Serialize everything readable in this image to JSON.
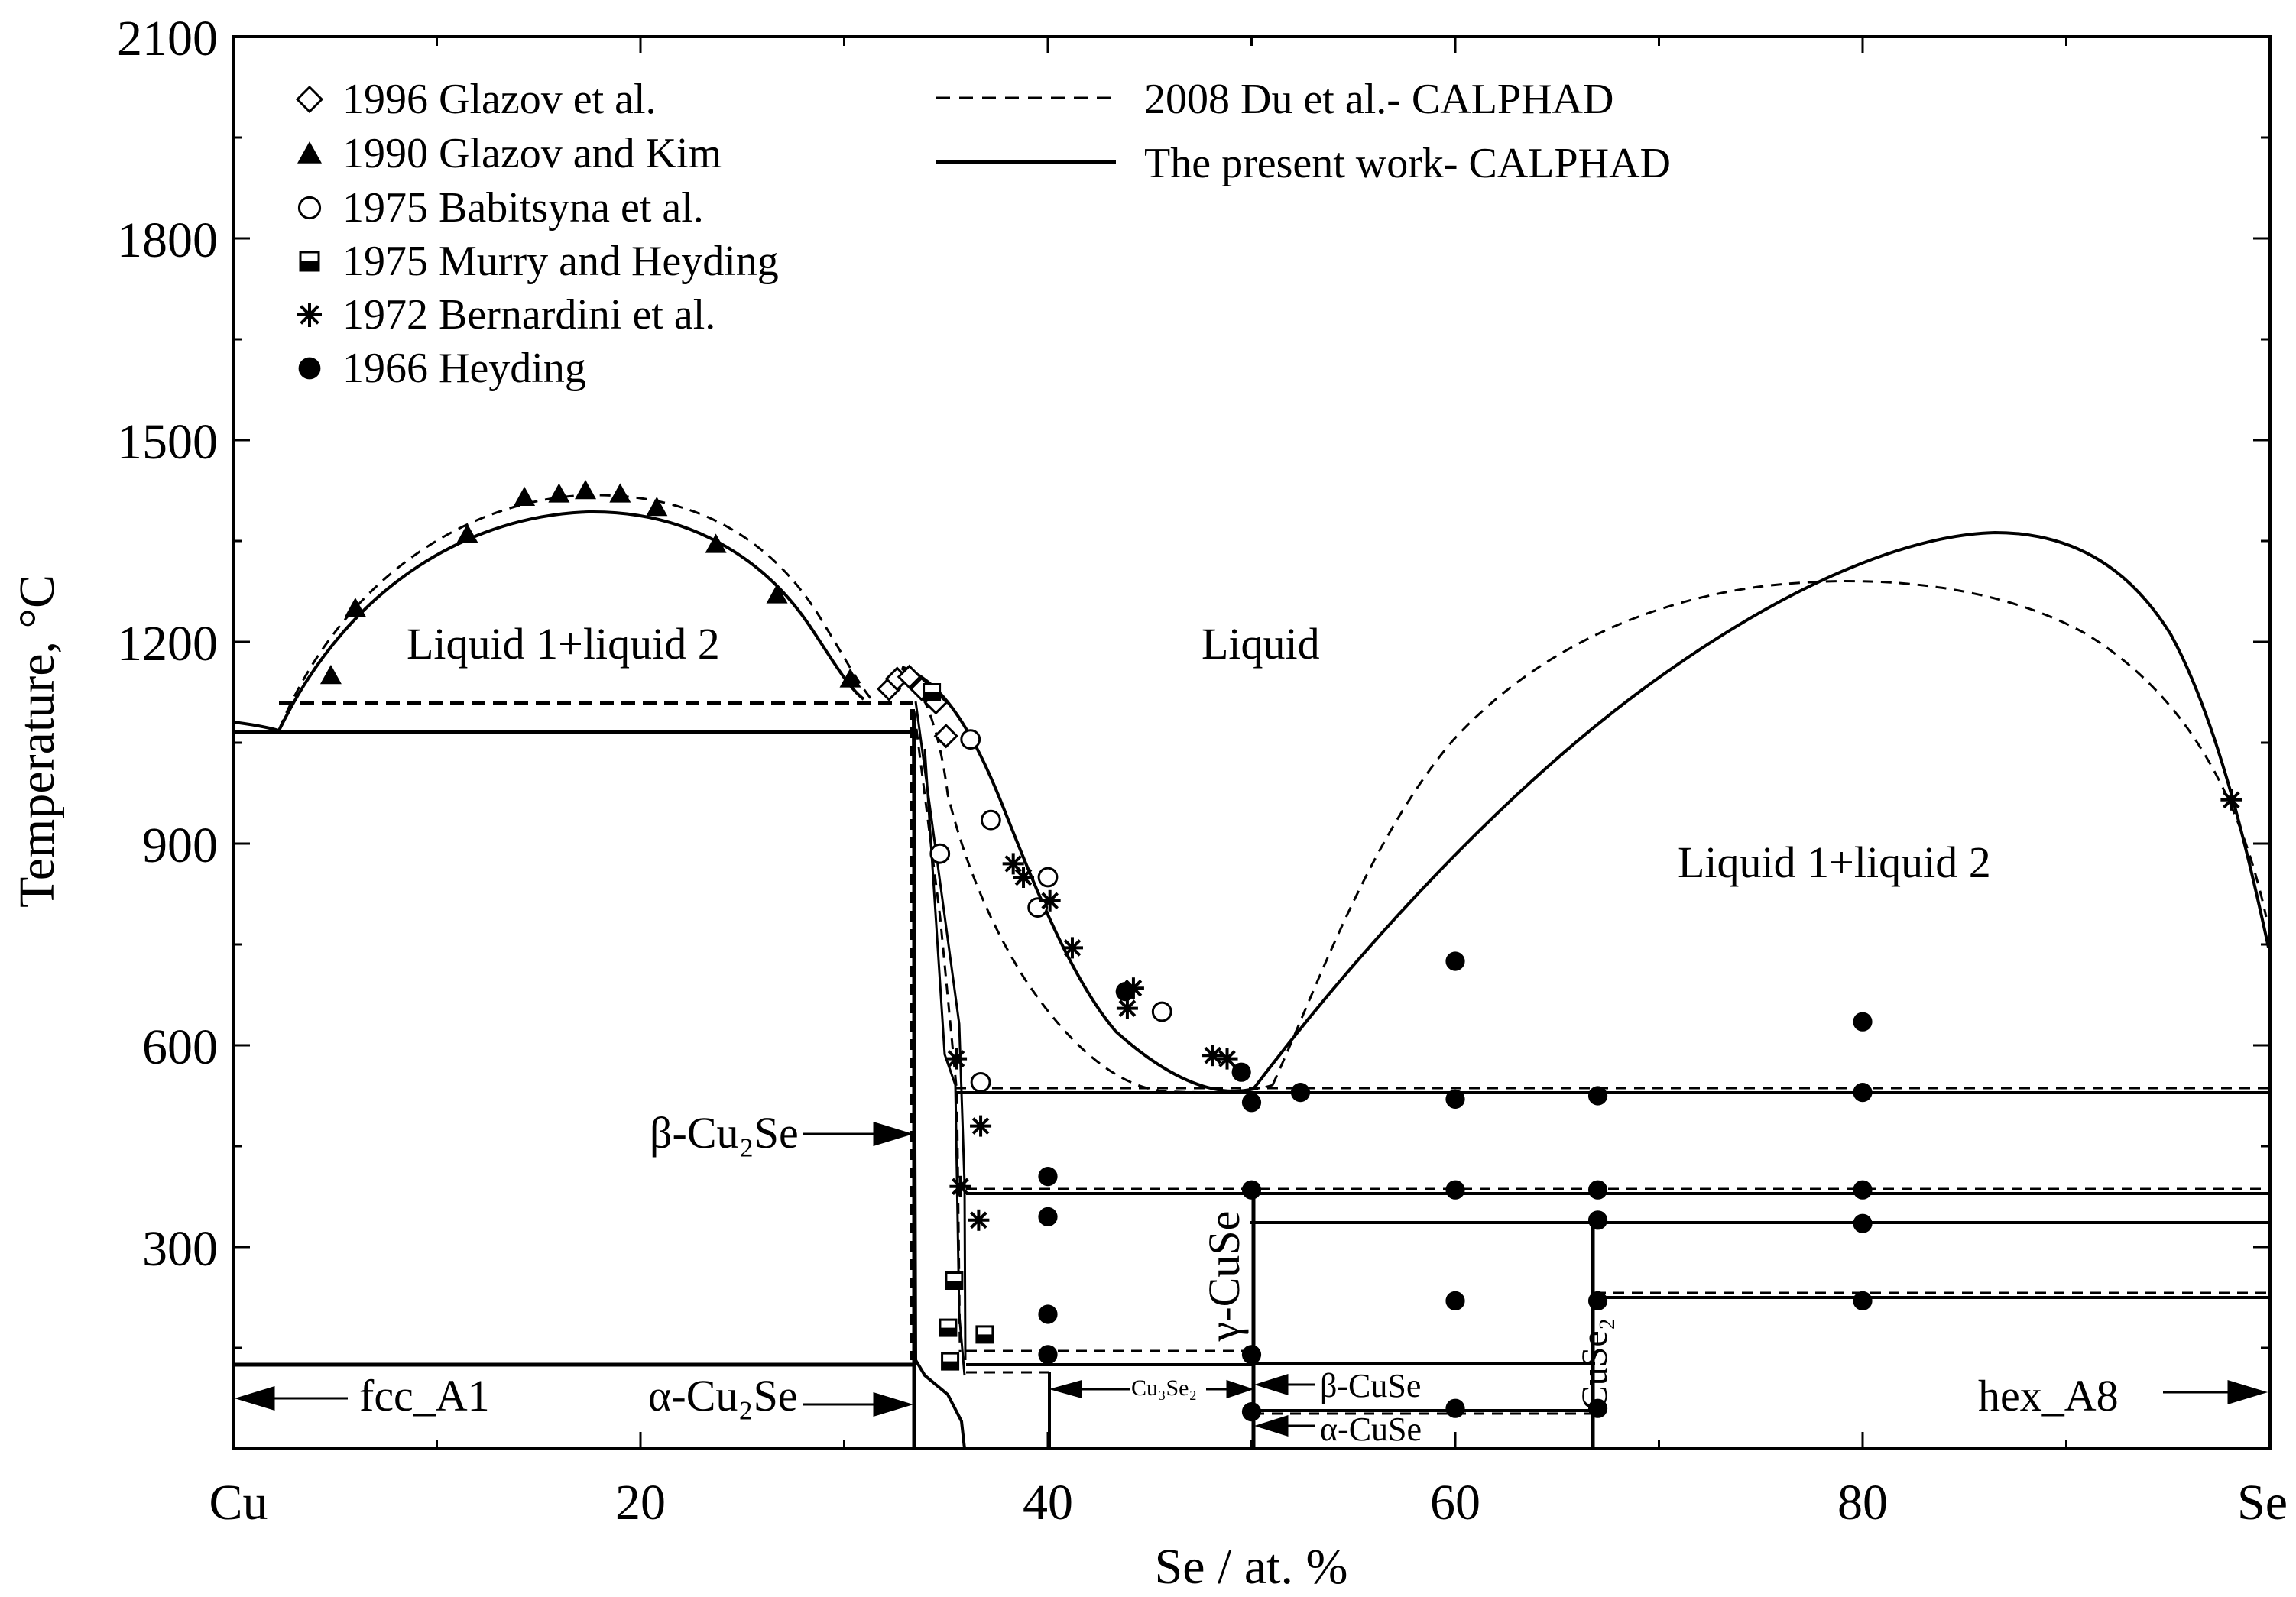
{
  "chart_data": {
    "type": "scatter",
    "title": "",
    "xlabel": "Se / at. %",
    "ylabel": "Temperature, °C",
    "xlim": [
      0,
      100
    ],
    "ylim": [
      0,
      2100
    ],
    "xtick_values": [
      0,
      20,
      40,
      60,
      80,
      100
    ],
    "xtick_labels": [
      "Cu",
      "20",
      "40",
      "60",
      "80",
      "Se"
    ],
    "ytick_values": [
      300,
      600,
      900,
      1200,
      1500,
      1800,
      2100
    ],
    "ytick_labels": [
      "300",
      "600",
      "900",
      "1200",
      "1500",
      "1800",
      "2100"
    ],
    "legend": {
      "markers": [
        {
          "label": "1996 Glazov et al.",
          "marker": "diamond-open"
        },
        {
          "label": "1990 Glazov and Kim",
          "marker": "triangle-filled"
        },
        {
          "label": "1975 Babitsyna et al.",
          "marker": "circle-open"
        },
        {
          "label": "1975 Murry and Heyding",
          "marker": "square-half"
        },
        {
          "label": "1972 Bernardini et al.",
          "marker": "asterisk"
        },
        {
          "label": "1966 Heyding",
          "marker": "circle-filled"
        }
      ],
      "lines": [
        {
          "label": "2008 Du et al.- CALPHAD",
          "style": "dashed"
        },
        {
          "label": "The present work- CALPHAD",
          "style": "solid"
        }
      ]
    },
    "region_labels": {
      "l1l2_left": "Liquid 1+liquid 2",
      "liquid": "Liquid",
      "l1l2_right": "Liquid 1+liquid 2",
      "fcc": "fcc_A1",
      "alpha_cu2se": "α-Cu₂Se",
      "beta_cu2se": "β-Cu₂Se",
      "gamma_cuse": "γ-CuSe",
      "cuse2": "CuSe₂",
      "beta_cuse": "β-CuSe",
      "alpha_cuse": "α-CuSe",
      "cu3se2": "Cu₃Se₂",
      "hex": "hex_A8"
    },
    "series": [
      {
        "name": "1996 Glazov et al.",
        "marker": "diamond-open",
        "points": [
          [
            32.2,
            1130
          ],
          [
            32.6,
            1145
          ],
          [
            33.2,
            1148
          ],
          [
            33.8,
            1130
          ],
          [
            34.5,
            1110
          ],
          [
            35.0,
            1060
          ]
        ]
      },
      {
        "name": "1990 Glazov and Kim",
        "marker": "triangle-filled",
        "points": [
          [
            4.8,
            1150
          ],
          [
            6.0,
            1250
          ],
          [
            11.5,
            1360
          ],
          [
            14.3,
            1415
          ],
          [
            16.0,
            1420
          ],
          [
            17.3,
            1425
          ],
          [
            19.0,
            1420
          ],
          [
            20.8,
            1400
          ],
          [
            23.7,
            1345
          ],
          [
            26.7,
            1270
          ],
          [
            30.3,
            1145
          ]
        ]
      },
      {
        "name": "1975 Babitsyna et al.",
        "marker": "circle-open",
        "points": [
          [
            34.7,
            885
          ],
          [
            36.2,
            1055
          ],
          [
            37.2,
            935
          ],
          [
            39.5,
            805
          ],
          [
            40.0,
            850
          ],
          [
            36.7,
            545
          ],
          [
            45.6,
            650
          ]
        ]
      },
      {
        "name": "1975 Murry and Heyding",
        "marker": "square-half",
        "points": [
          [
            34.3,
            1125
          ],
          [
            35.4,
            250
          ],
          [
            35.1,
            180
          ],
          [
            36.9,
            170
          ],
          [
            35.2,
            130
          ]
        ]
      },
      {
        "name": "1972 Bernardini et al.",
        "marker": "asterisk",
        "points": [
          [
            35.5,
            580
          ],
          [
            36.7,
            480
          ],
          [
            35.7,
            390
          ],
          [
            36.6,
            340
          ],
          [
            38.3,
            870
          ],
          [
            38.8,
            850
          ],
          [
            40.1,
            815
          ],
          [
            41.2,
            745
          ],
          [
            43.9,
            655
          ],
          [
            44.2,
            685
          ],
          [
            48.1,
            585
          ],
          [
            48.8,
            580
          ],
          [
            98.1,
            965
          ]
        ]
      },
      {
        "name": "1966 Heyding",
        "marker": "circle-filled",
        "points": [
          [
            40.0,
            405
          ],
          [
            40.0,
            345
          ],
          [
            40.0,
            200
          ],
          [
            40.0,
            140
          ],
          [
            43.8,
            680
          ],
          [
            49.5,
            560
          ],
          [
            50.0,
            515
          ],
          [
            50.0,
            385
          ],
          [
            50.0,
            140
          ],
          [
            50.0,
            55
          ],
          [
            52.4,
            530
          ],
          [
            60.0,
            725
          ],
          [
            60.0,
            520
          ],
          [
            60.0,
            385
          ],
          [
            60.0,
            220
          ],
          [
            60.0,
            60
          ],
          [
            67.0,
            525
          ],
          [
            67.0,
            385
          ],
          [
            67.0,
            340
          ],
          [
            67.0,
            220
          ],
          [
            67.0,
            60
          ],
          [
            80.0,
            635
          ],
          [
            80.0,
            530
          ],
          [
            80.0,
            385
          ],
          [
            80.0,
            335
          ],
          [
            80.0,
            220
          ]
        ]
      }
    ]
  }
}
